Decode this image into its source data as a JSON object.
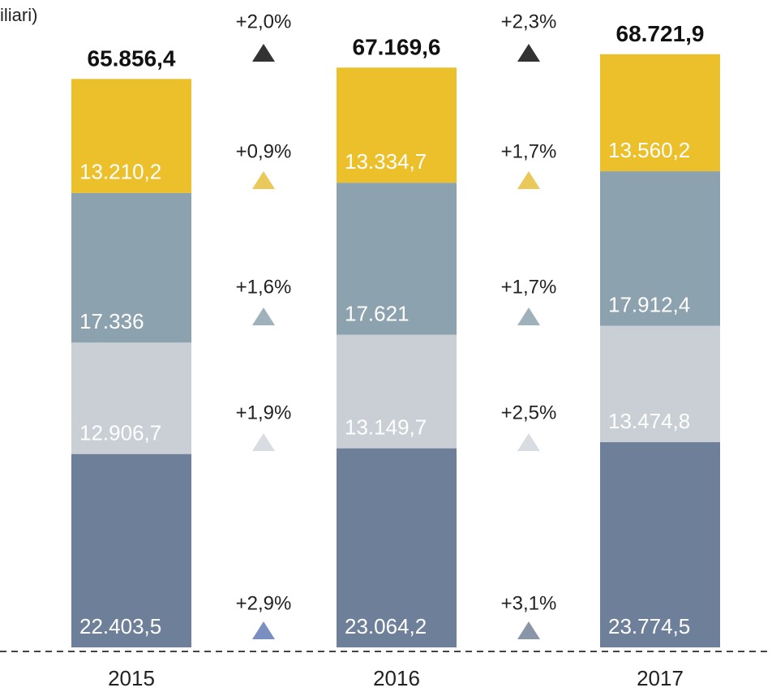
{
  "chart_data": {
    "type": "stacked_bar",
    "subtitle": "iliari)",
    "categories": [
      "2015",
      "2016",
      "2017"
    ],
    "ylim": [
      0,
      75000
    ],
    "series": [
      {
        "name": null,
        "color": "#6e7f99",
        "values": [
          22403.5,
          23064.2,
          23774.5
        ],
        "value_labels": [
          "22.403,5",
          "23.064,2",
          "23.774,5"
        ]
      },
      {
        "name": null,
        "color": "#c9cfd5",
        "values": [
          12906.7,
          13149.7,
          13474.8
        ],
        "value_labels": [
          "12.906,7",
          "13.149,7",
          "13.474,8"
        ]
      },
      {
        "name": null,
        "color": "#8ca2ae",
        "values": [
          17336,
          17621,
          17912.4
        ],
        "value_labels": [
          "17.336",
          "17.621",
          "17.912,4"
        ]
      },
      {
        "name": null,
        "color": "#ebc02b",
        "values": [
          13210.2,
          13334.7,
          13560.2
        ],
        "value_labels": [
          "13.210,2",
          "13.334,7",
          "13.560,2"
        ]
      }
    ],
    "totals": [
      {
        "value": 65856.4,
        "label": "65.856,4"
      },
      {
        "value": 67169.6,
        "label": "67.169,6"
      },
      {
        "value": 68721.9,
        "label": "68.721,9"
      }
    ],
    "growth": [
      {
        "labels": [
          "+2,0%",
          "+0,9%",
          "+1,6%",
          "+1,9%",
          "+2,9%"
        ],
        "colors": [
          "#333333",
          "#ebc85a",
          "#9fb2bc",
          "#d9dde2",
          "#7b8ec0"
        ]
      },
      {
        "labels": [
          "+2,3%",
          "+1,7%",
          "+1,7%",
          "+2,5%",
          "+3,1%"
        ],
        "colors": [
          "#333333",
          "#ebc85a",
          "#9fb2bc",
          "#d9dde2",
          "#8a95a8"
        ]
      }
    ]
  }
}
